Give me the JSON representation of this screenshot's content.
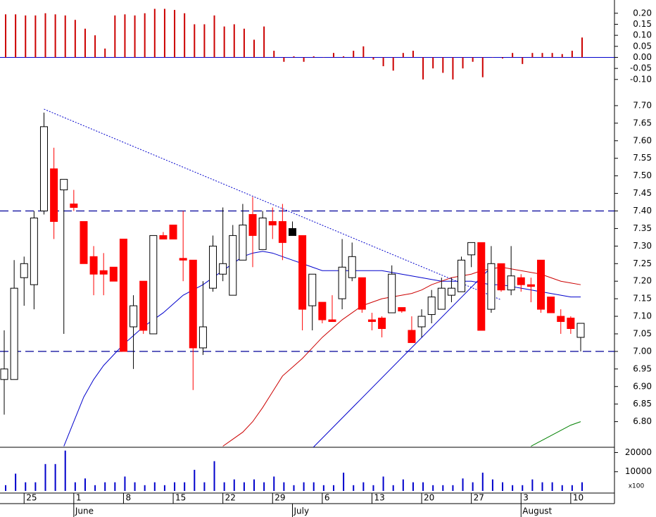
{
  "chart_data": [
    {
      "type": "bar",
      "color": "#cc0000",
      "values": [
        0.195,
        0.195,
        0.19,
        0.19,
        0.2,
        0.195,
        0.19,
        0.17,
        0.13,
        0.1,
        0.04,
        0.19,
        0.195,
        0.19,
        0.2,
        0.22,
        0.22,
        0.215,
        0.2,
        0.15,
        0.15,
        0.19,
        0.14,
        0.15,
        0.13,
        0.08,
        0.14,
        0.03,
        -0.02,
        0.005,
        -0.02,
        0.005,
        0.0,
        0.02,
        0.005,
        0.03,
        0.05,
        -0.01,
        -0.04,
        -0.06,
        0.02,
        0.03,
        -0.1,
        -0.05,
        -0.07,
        -0.1,
        -0.05,
        -0.02,
        -0.09,
        0.0,
        -0.005,
        0.02,
        -0.03,
        0.02,
        0.02,
        0.02,
        0.015,
        0.03,
        0.09
      ],
      "ylim": [
        -0.123,
        0.26
      ],
      "yticks": [
        {
          "value": 0.2,
          "label": "0.20"
        },
        {
          "value": 0.15,
          "label": "0.15"
        },
        {
          "value": 0.1,
          "label": "0.10"
        },
        {
          "value": 0.05,
          "label": "0.05"
        },
        {
          "value": 0,
          "label": "0.00"
        },
        {
          "value": -0.05,
          "label": "-0.05"
        },
        {
          "value": -0.1,
          "label": "-0.10"
        }
      ],
      "zero_line_color": "#0000cc"
    },
    {
      "type": "candlestick",
      "up_color": "#ffffff",
      "down_color": "#ff0000",
      "highlight": {
        "index": 29,
        "color": "#000000"
      },
      "open": [
        6.92,
        6.92,
        7.21,
        7.19,
        7.4,
        7.52,
        7.46,
        7.42,
        7.37,
        7.27,
        7.23,
        7.24,
        7.32,
        7.07,
        7.2,
        7.05,
        7.33,
        7.36,
        7.265,
        7.26,
        7.01,
        7.18,
        7.22,
        7.16,
        7.26,
        7.39,
        7.29,
        7.37,
        7.37,
        7.33,
        7.33,
        7.13,
        7.14,
        7.09,
        7.15,
        7.21,
        7.21,
        7.09,
        7.095,
        7.11,
        7.125,
        7.06,
        7.07,
        7.105,
        7.12,
        7.16,
        7.17,
        7.275,
        7.31,
        7.12,
        7.25,
        7.175,
        7.21,
        7.19,
        7.26,
        7.155,
        7.1,
        7.095,
        7.04
      ],
      "high": [
        7.06,
        7.26,
        7.27,
        7.4,
        7.68,
        7.58,
        7.49,
        7.46,
        7.37,
        7.3,
        7.28,
        7.24,
        7.32,
        7.16,
        7.2,
        7.33,
        7.34,
        7.36,
        7.4,
        7.26,
        7.2,
        7.33,
        7.41,
        7.36,
        7.42,
        7.44,
        7.4,
        7.41,
        7.42,
        7.37,
        7.33,
        7.22,
        7.14,
        7.16,
        7.32,
        7.31,
        7.21,
        7.11,
        7.1,
        7.245,
        7.125,
        7.1,
        7.12,
        7.175,
        7.21,
        7.21,
        7.27,
        7.31,
        7.31,
        7.3,
        7.25,
        7.3,
        7.22,
        7.21,
        7.26,
        7.155,
        7.12,
        7.1,
        7.08
      ],
      "low": [
        6.82,
        6.92,
        7.13,
        7.12,
        7.39,
        7.32,
        7.05,
        7.4,
        7.25,
        7.16,
        7.16,
        7.2,
        7.0,
        6.95,
        7.05,
        7.05,
        7.32,
        7.32,
        7.2,
        6.89,
        6.99,
        7.17,
        7.2,
        7.16,
        7.26,
        7.24,
        7.29,
        7.32,
        7.26,
        7.33,
        7.06,
        7.06,
        7.08,
        7.085,
        7.12,
        7.2,
        7.11,
        7.06,
        7.04,
        7.11,
        7.11,
        7.025,
        7.04,
        7.08,
        7.12,
        7.14,
        7.17,
        7.24,
        7.06,
        7.11,
        7.17,
        7.16,
        7.17,
        7.14,
        7.11,
        7.11,
        7.05,
        7.05,
        7.0
      ],
      "close": [
        6.95,
        7.18,
        7.25,
        7.38,
        7.64,
        7.37,
        7.49,
        7.41,
        7.25,
        7.22,
        7.22,
        7.2,
        7.0,
        7.13,
        7.06,
        7.33,
        7.32,
        7.32,
        7.26,
        7.01,
        7.07,
        7.3,
        7.25,
        7.33,
        7.36,
        7.33,
        7.38,
        7.36,
        7.31,
        7.35,
        7.12,
        7.22,
        7.09,
        7.085,
        7.24,
        7.27,
        7.12,
        7.085,
        7.065,
        7.22,
        7.115,
        7.025,
        7.1,
        7.155,
        7.18,
        7.18,
        7.26,
        7.31,
        7.06,
        7.25,
        7.175,
        7.215,
        7.19,
        7.185,
        7.12,
        7.11,
        7.085,
        7.065,
        7.08
      ],
      "series": [
        {
          "color": "#0000cc",
          "values": [
            null,
            null,
            null,
            null,
            null,
            null,
            6.73,
            6.8,
            6.87,
            6.92,
            6.96,
            6.99,
            7.02,
            7.045,
            7.07,
            7.09,
            7.11,
            7.135,
            7.16,
            7.175,
            7.19,
            7.21,
            7.23,
            7.25,
            7.27,
            7.28,
            7.285,
            7.28,
            7.27,
            7.26,
            7.25,
            7.24,
            7.23,
            7.23,
            7.23,
            7.23,
            7.23,
            7.23,
            7.23,
            7.225,
            7.22,
            7.215,
            7.21,
            7.205,
            7.2,
            7.2,
            7.2,
            7.2,
            7.195,
            7.19,
            7.19,
            7.185,
            7.18,
            7.175,
            7.17,
            7.165,
            7.16,
            7.155,
            7.155
          ]
        },
        {
          "color": "#cc0000",
          "values": [
            null,
            null,
            null,
            null,
            null,
            null,
            null,
            null,
            null,
            null,
            null,
            null,
            null,
            null,
            null,
            null,
            null,
            null,
            null,
            null,
            null,
            null,
            6.73,
            6.75,
            6.77,
            6.8,
            6.84,
            6.885,
            6.93,
            6.955,
            6.98,
            7.01,
            7.04,
            7.065,
            7.09,
            7.11,
            7.13,
            7.14,
            7.15,
            7.155,
            7.16,
            7.165,
            7.175,
            7.19,
            7.2,
            7.21,
            7.215,
            7.22,
            7.23,
            7.235,
            7.24,
            7.235,
            7.23,
            7.225,
            7.22,
            7.21,
            7.2,
            7.195,
            7.19
          ]
        },
        {
          "color": "#008000",
          "values": [
            null,
            null,
            null,
            null,
            null,
            null,
            null,
            null,
            null,
            null,
            null,
            null,
            null,
            null,
            null,
            null,
            null,
            null,
            null,
            null,
            null,
            null,
            null,
            null,
            null,
            null,
            null,
            null,
            null,
            null,
            null,
            null,
            null,
            null,
            null,
            null,
            null,
            null,
            null,
            null,
            null,
            null,
            null,
            null,
            null,
            null,
            null,
            null,
            null,
            null,
            null,
            null,
            null,
            6.73,
            6.745,
            6.76,
            6.775,
            6.79,
            6.8
          ]
        }
      ],
      "hlines": [
        7.4,
        7.0
      ],
      "hline_color": "#000099",
      "trendlines": [
        {
          "x": [
            4,
            49.9
          ],
          "y": [
            7.69,
            7.148
          ],
          "style": "dotted",
          "color": "#0000cc"
        },
        {
          "x": [
            31.1,
            49
          ],
          "y": [
            6.727,
            7.24
          ],
          "style": "solid",
          "color": "#0000cc"
        }
      ],
      "ylim": [
        6.727,
        7.732
      ],
      "yticks": [
        {
          "value": 7.7,
          "label": "7.70"
        },
        {
          "value": 7.65,
          "label": "7.65"
        },
        {
          "value": 7.6,
          "label": "7.60"
        },
        {
          "value": 7.55,
          "label": "7.55"
        },
        {
          "value": 7.5,
          "label": "7.50"
        },
        {
          "value": 7.45,
          "label": "7.45"
        },
        {
          "value": 7.4,
          "label": "7.40"
        },
        {
          "value": 7.35,
          "label": "7.35"
        },
        {
          "value": 7.3,
          "label": "7.30"
        },
        {
          "value": 7.25,
          "label": "7.25"
        },
        {
          "value": 7.2,
          "label": "7.20"
        },
        {
          "value": 7.15,
          "label": "7.15"
        },
        {
          "value": 7.1,
          "label": "7.10"
        },
        {
          "value": 7.05,
          "label": "7.05"
        },
        {
          "value": 7.0,
          "label": "7.00"
        },
        {
          "value": 6.95,
          "label": "6.95"
        },
        {
          "value": 6.9,
          "label": "6.90"
        },
        {
          "value": 6.85,
          "label": "6.85"
        },
        {
          "value": 6.8,
          "label": "6.80"
        }
      ]
    },
    {
      "type": "bar",
      "color": "#0000cc",
      "values": [
        3000,
        9000,
        4500,
        4500,
        14000,
        14000,
        21000,
        4500,
        6500,
        3000,
        4500,
        4500,
        7500,
        4500,
        3000,
        4500,
        3000,
        4500,
        4500,
        11000,
        4500,
        15500,
        4500,
        6000,
        4500,
        6000,
        4500,
        7500,
        4500,
        3000,
        4500,
        4500,
        3000,
        3000,
        9500,
        3000,
        4500,
        3000,
        7500,
        3000,
        6000,
        4500,
        4500,
        3000,
        3000,
        3000,
        6500,
        4500,
        9500,
        6000,
        4500,
        3000,
        3000,
        6000,
        4500,
        4500,
        3000,
        3000,
        4500
      ],
      "ylim": [
        0,
        22000
      ],
      "yticks": [
        20000,
        10000
      ],
      "y_unit": "x100",
      "xlim": [
        -0.425,
        61.4
      ],
      "xticks": [
        {
          "value": 2,
          "label": "25"
        },
        {
          "value": 7,
          "label": "1"
        },
        {
          "value": 12,
          "label": "8"
        },
        {
          "value": 17,
          "label": "15"
        },
        {
          "value": 22,
          "label": "22"
        },
        {
          "value": 27,
          "label": "29"
        },
        {
          "value": 32,
          "label": "6"
        },
        {
          "value": 37,
          "label": "13"
        },
        {
          "value": 42,
          "label": "20"
        },
        {
          "value": 47,
          "label": "27"
        },
        {
          "value": 52,
          "label": "3"
        },
        {
          "value": 57,
          "label": "10"
        }
      ],
      "month_ticks": [
        {
          "value": 7,
          "label": "June"
        },
        {
          "value": 29,
          "label": "July"
        },
        {
          "value": 52,
          "label": "August"
        }
      ]
    }
  ]
}
